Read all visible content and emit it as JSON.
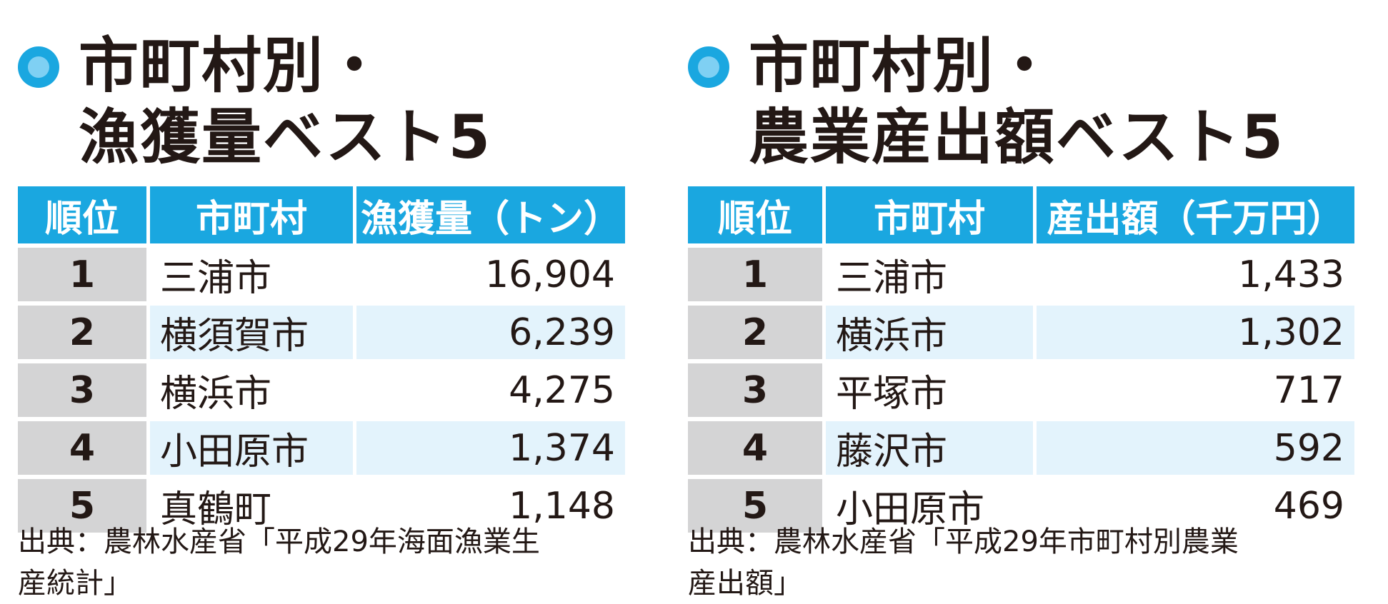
{
  "chart_data": [
    {
      "type": "table",
      "title_line1": "市町村別・",
      "title_line2": "漁獲量ベスト5",
      "columns": [
        "順位",
        "市町村",
        "漁獲量（トン）"
      ],
      "rows": [
        {
          "rank": "1",
          "name": "三浦市",
          "value": "16,904"
        },
        {
          "rank": "2",
          "name": "横須賀市",
          "value": "6,239"
        },
        {
          "rank": "3",
          "name": "横浜市",
          "value": "4,275"
        },
        {
          "rank": "4",
          "name": "小田原市",
          "value": "1,374"
        },
        {
          "rank": "5",
          "name": "真鶴町",
          "value": "1,148"
        }
      ],
      "source_line1": "出典：農林水産省「平成29年海面漁業生",
      "source_line2": "産統計」"
    },
    {
      "type": "table",
      "title_line1": "市町村別・",
      "title_line2": "農業産出額ベスト5",
      "columns": [
        "順位",
        "市町村",
        "産出額（千万円）"
      ],
      "rows": [
        {
          "rank": "1",
          "name": "三浦市",
          "value": "1,433"
        },
        {
          "rank": "2",
          "name": "横浜市",
          "value": "1,302"
        },
        {
          "rank": "3",
          "name": "平塚市",
          "value": "717"
        },
        {
          "rank": "4",
          "name": "藤沢市",
          "value": "592"
        },
        {
          "rank": "5",
          "name": "小田原市",
          "value": "469"
        }
      ],
      "source_line1": "出典：農林水産省「平成29年市町村別農業",
      "source_line2": "産出額」"
    }
  ],
  "colors": {
    "accent": "#1aa7e0",
    "accent_light": "#7fd0f3",
    "rank_bg": "#d4d4d5",
    "row_shade": "#e3f3fc"
  }
}
